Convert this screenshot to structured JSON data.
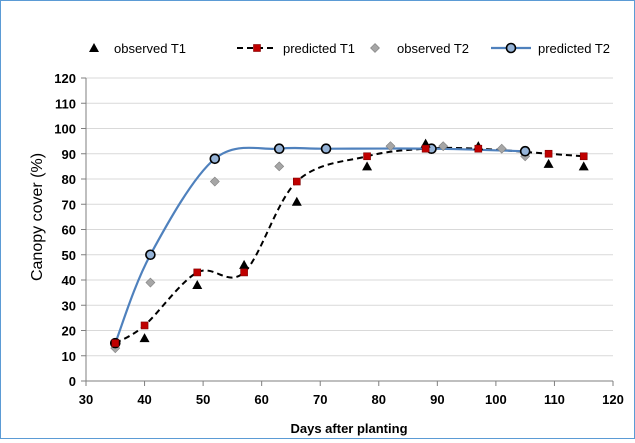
{
  "chart_data": {
    "type": "scatter",
    "xlabel": "Days after planting",
    "ylabel": "Canopy cover (%)",
    "xlim": [
      30,
      120
    ],
    "ylim": [
      0,
      120
    ],
    "xticks": [
      30,
      40,
      50,
      60,
      70,
      80,
      90,
      100,
      110,
      120
    ],
    "yticks": [
      0,
      10,
      20,
      30,
      40,
      50,
      60,
      70,
      80,
      90,
      100,
      110,
      120
    ],
    "grid": "horizontal",
    "legend_position": "top",
    "series": [
      {
        "name": "observed T1",
        "style": "black-triangle-markers",
        "color": "#000000",
        "x": [
          40,
          49,
          57,
          66,
          78,
          88,
          97,
          109,
          115
        ],
        "y": [
          17,
          38,
          46,
          71,
          85,
          94,
          93,
          86,
          85
        ]
      },
      {
        "name": "predicted T1",
        "style": "dashed-line-red-square-markers",
        "color": "#c00000",
        "line_color": "#000000",
        "x": [
          35,
          40,
          49,
          57,
          66,
          78,
          88,
          97,
          109,
          115
        ],
        "y": [
          15,
          22,
          43,
          43,
          79,
          89,
          92,
          92,
          90,
          89
        ]
      },
      {
        "name": "observed T2",
        "style": "grey-diamond-markers",
        "color": "#a6a6a6",
        "x": [
          35,
          41,
          52,
          63,
          71,
          82,
          91,
          101,
          105
        ],
        "y": [
          13,
          39,
          79,
          85,
          92,
          93,
          93,
          92,
          89
        ]
      },
      {
        "name": "predicted T2",
        "style": "blue-line-circle-markers",
        "color": "#4f81bd",
        "marker_color": "#95b3d7",
        "x": [
          35,
          41,
          52,
          63,
          71,
          89,
          105
        ],
        "y": [
          15,
          50,
          88,
          92,
          92,
          92,
          91
        ]
      }
    ]
  }
}
